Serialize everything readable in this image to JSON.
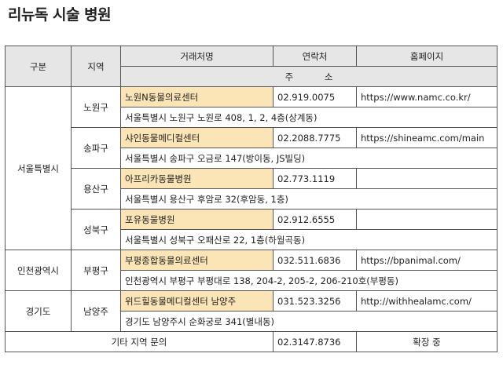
{
  "title": "리뉴독 시술 병원",
  "headers": {
    "category": "구분",
    "area": "지역",
    "clinic": "거래처명",
    "phone": "연락처",
    "homepage": "홈페이지",
    "address": "주 소"
  },
  "regions": [
    {
      "name": "서울특별시",
      "areas": [
        {
          "area": "노원구",
          "clinic": "노원N동물의료센터",
          "phone": "02.919.0075",
          "homepage": "https://www.namc.co.kr/",
          "address": "서울특별시 노원구 노원로 408, 1, 2, 4층(상계동)"
        },
        {
          "area": "송파구",
          "clinic": "샤인동물메디컬센터",
          "phone": "02.2088.7775",
          "homepage": "https://shineamc.com/main",
          "address": "서울특별시 송파구 오금로 147(방이동, JS빌딩)"
        },
        {
          "area": "용산구",
          "clinic": "아프리카동물병원",
          "phone": "02.773.1119",
          "homepage": "",
          "address": "서울특별시 용산구 후암로 32(후암동, 1층)"
        },
        {
          "area": "성북구",
          "clinic": "포유동물병원",
          "phone": "02.912.6555",
          "homepage": "",
          "address": "서울특별시 성북구 오패산로 22, 1층(하월곡동)"
        }
      ]
    },
    {
      "name": "인천광역시",
      "areas": [
        {
          "area": "부평구",
          "clinic": "부평종합동물의료센터",
          "phone": "032.511.6836",
          "homepage": "https://bpanimal.com/",
          "address": "인천광역시 부평구 부평대로 138, 204-2, 205-2, 206-210호(부평동)"
        }
      ]
    },
    {
      "name": "경기도",
      "areas": [
        {
          "area": "남양주",
          "clinic": "위드힐동물메디컬센터 남양주",
          "phone": "031.523.3256",
          "homepage": "http://withhealamc.com/",
          "address": "경기도 남양주시 순화궁로 341(별내동)"
        }
      ]
    }
  ],
  "footer": {
    "label": "기타 지역 문의",
    "phone": "02.3147.8736",
    "note": "확장 중"
  }
}
